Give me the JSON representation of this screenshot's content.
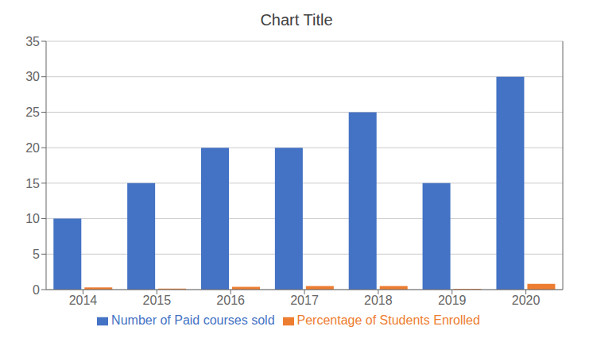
{
  "chart_data": {
    "type": "bar",
    "title": "Chart Title",
    "categories": [
      "2014",
      "2015",
      "2016",
      "2017",
      "2018",
      "2019",
      "2020"
    ],
    "series": [
      {
        "name": "Number of Paid courses sold",
        "color": "#4472C4",
        "values": [
          10,
          15,
          20,
          20,
          25,
          15,
          30
        ]
      },
      {
        "name": "Percentage of Students Enrolled",
        "color": "#ED7D31",
        "values": [
          0.3,
          0.15,
          0.4,
          0.5,
          0.5,
          0.1,
          0.8
        ],
        "axis": "y2"
      }
    ],
    "ylim": [
      0,
      35
    ],
    "yticks": [
      0,
      5,
      10,
      15,
      20,
      25,
      30,
      35
    ],
    "y2lim": [
      0,
      35
    ],
    "y2ticks": [],
    "grid": true,
    "legend": "bottom"
  }
}
